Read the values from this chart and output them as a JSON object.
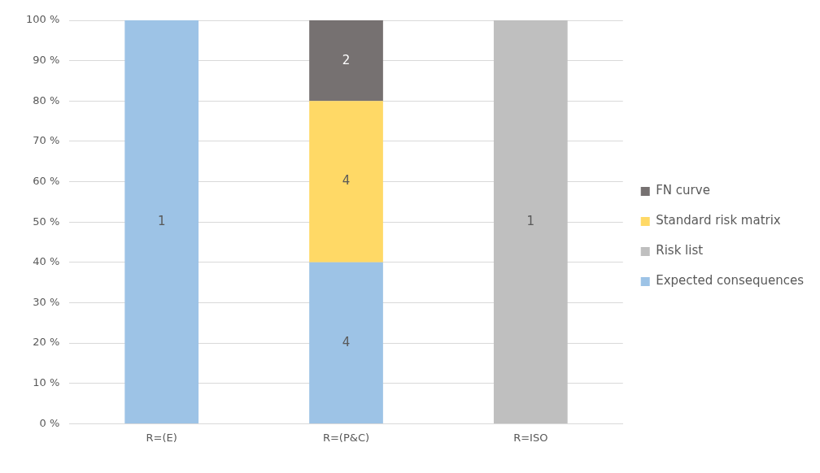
{
  "chart_data": {
    "type": "bar",
    "stacked": true,
    "categories": [
      "R=(E)",
      "R=(P&C)",
      "R=ISO"
    ],
    "series": [
      {
        "name": "Expected consequences",
        "color": "#9dc3e6",
        "values": [
          100,
          40,
          null
        ]
      },
      {
        "name": "Risk list",
        "color": "#bfbfbf",
        "values": [
          null,
          null,
          100
        ]
      },
      {
        "name": "Standard risk matrix",
        "color": "#ffd966",
        "values": [
          null,
          40,
          null
        ]
      },
      {
        "name": "FN curve",
        "color": "#767171",
        "values": [
          null,
          20,
          null
        ]
      }
    ],
    "annotations": [
      "1",
      "4",
      "4",
      "2",
      "1"
    ],
    "ylim": [
      0,
      100
    ],
    "yticks": [
      {
        "value": 0,
        "label": "0 %"
      },
      {
        "value": 10,
        "label": "10 %"
      },
      {
        "value": 20,
        "label": "20 %"
      },
      {
        "value": 30,
        "label": "30 %"
      },
      {
        "value": 40,
        "label": "40 %"
      },
      {
        "value": 50,
        "label": "50 %"
      },
      {
        "value": 60,
        "label": "60 %"
      },
      {
        "value": 70,
        "label": "70 %"
      },
      {
        "value": 80,
        "label": "80 %"
      },
      {
        "value": 90,
        "label": "90 %"
      },
      {
        "value": 100,
        "label": "100 %"
      }
    ],
    "grid": "y",
    "legend": "right"
  }
}
